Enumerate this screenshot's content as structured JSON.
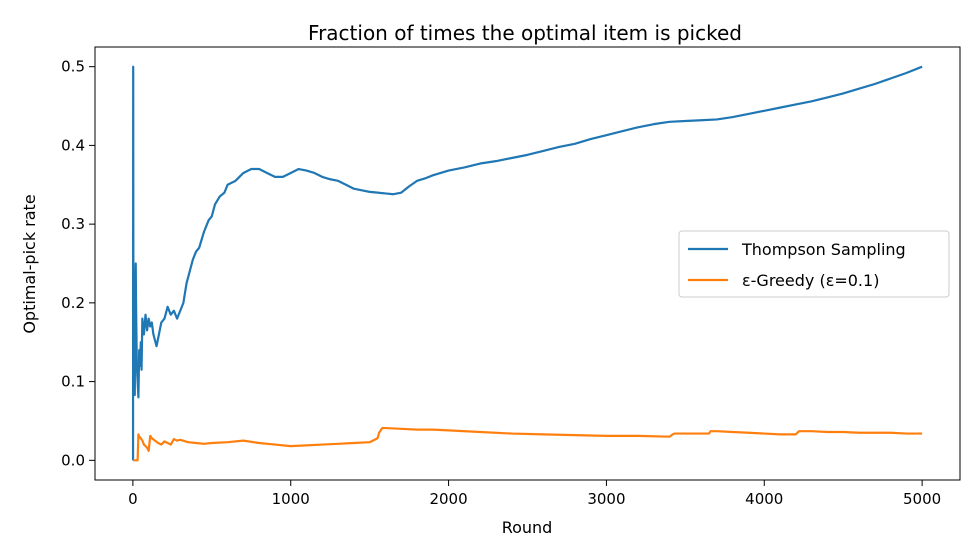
{
  "chart_data": {
    "type": "line",
    "title": "Fraction of times the optimal item is picked",
    "xlabel": "Round",
    "ylabel": "Optimal-pick rate",
    "xlim": [
      -240,
      5240
    ],
    "ylim": [
      -0.025,
      0.525
    ],
    "xticks": [
      0,
      1000,
      2000,
      3000,
      4000,
      5000
    ],
    "yticks": [
      0.0,
      0.1,
      0.2,
      0.3,
      0.4,
      0.5
    ],
    "xtick_labels": [
      "0",
      "1000",
      "2000",
      "3000",
      "4000",
      "5000"
    ],
    "ytick_labels": [
      "0.0",
      "0.1",
      "0.2",
      "0.3",
      "0.4",
      "0.5"
    ],
    "grid": false,
    "legend_position": "center-right",
    "series": [
      {
        "name": "Thompson Sampling",
        "color": "#1f77b4",
        "x": [
          1,
          2,
          3,
          5,
          8,
          10,
          12,
          15,
          18,
          20,
          25,
          30,
          35,
          40,
          45,
          50,
          55,
          60,
          70,
          80,
          90,
          100,
          110,
          120,
          130,
          150,
          170,
          180,
          200,
          220,
          240,
          260,
          280,
          300,
          320,
          340,
          360,
          380,
          400,
          420,
          450,
          480,
          500,
          520,
          550,
          580,
          600,
          650,
          700,
          750,
          800,
          850,
          900,
          950,
          1000,
          1050,
          1100,
          1150,
          1200,
          1250,
          1300,
          1350,
          1400,
          1450,
          1500,
          1550,
          1600,
          1650,
          1700,
          1750,
          1800,
          1850,
          1900,
          1950,
          2000,
          2100,
          2200,
          2300,
          2400,
          2500,
          2600,
          2700,
          2800,
          2900,
          3000,
          3100,
          3200,
          3300,
          3400,
          3500,
          3600,
          3700,
          3800,
          3900,
          4000,
          4100,
          4200,
          4300,
          4400,
          4500,
          4600,
          4700,
          4800,
          4900,
          5000
        ],
        "values": [
          0.0,
          0.5,
          0.25,
          0.2,
          0.125,
          0.1,
          0.083,
          0.2,
          0.25,
          0.2,
          0.12,
          0.1,
          0.08,
          0.14,
          0.12,
          0.15,
          0.115,
          0.18,
          0.16,
          0.185,
          0.165,
          0.18,
          0.17,
          0.175,
          0.16,
          0.145,
          0.165,
          0.175,
          0.18,
          0.195,
          0.185,
          0.19,
          0.18,
          0.19,
          0.2,
          0.225,
          0.24,
          0.255,
          0.265,
          0.27,
          0.29,
          0.305,
          0.31,
          0.325,
          0.335,
          0.34,
          0.35,
          0.355,
          0.365,
          0.37,
          0.37,
          0.365,
          0.36,
          0.36,
          0.365,
          0.37,
          0.368,
          0.365,
          0.36,
          0.357,
          0.355,
          0.35,
          0.345,
          0.343,
          0.341,
          0.34,
          0.339,
          0.338,
          0.34,
          0.348,
          0.355,
          0.358,
          0.362,
          0.365,
          0.368,
          0.372,
          0.377,
          0.38,
          0.384,
          0.388,
          0.393,
          0.398,
          0.402,
          0.408,
          0.413,
          0.418,
          0.423,
          0.427,
          0.43,
          0.431,
          0.432,
          0.433,
          0.436,
          0.44,
          0.444,
          0.448,
          0.452,
          0.456,
          0.461,
          0.466,
          0.472,
          0.478,
          0.485,
          0.492,
          0.5
        ]
      },
      {
        "name": "ε-Greedy (ε=0.1)",
        "color": "#ff7f0e",
        "x": [
          1,
          5,
          10,
          15,
          20,
          25,
          30,
          35,
          40,
          50,
          60,
          70,
          80,
          90,
          100,
          110,
          120,
          140,
          160,
          180,
          200,
          220,
          240,
          260,
          280,
          300,
          350,
          400,
          450,
          500,
          600,
          700,
          800,
          900,
          1000,
          1100,
          1200,
          1300,
          1400,
          1500,
          1550,
          1560,
          1580,
          1600,
          1700,
          1800,
          1900,
          2000,
          2200,
          2400,
          2600,
          2800,
          3000,
          3200,
          3400,
          3420,
          3430,
          3500,
          3600,
          3650,
          3660,
          3700,
          3800,
          3900,
          4000,
          4100,
          4200,
          4210,
          4220,
          4300,
          4400,
          4500,
          4600,
          4700,
          4800,
          4900,
          5000
        ],
        "values": [
          0.0,
          0.0,
          0.0,
          0.0,
          0.0,
          0.0,
          0.0,
          0.033,
          0.03,
          0.028,
          0.025,
          0.02,
          0.018,
          0.016,
          0.012,
          0.031,
          0.028,
          0.025,
          0.022,
          0.02,
          0.024,
          0.022,
          0.02,
          0.027,
          0.025,
          0.026,
          0.023,
          0.022,
          0.021,
          0.022,
          0.023,
          0.025,
          0.022,
          0.02,
          0.018,
          0.019,
          0.02,
          0.021,
          0.022,
          0.023,
          0.028,
          0.035,
          0.041,
          0.041,
          0.04,
          0.039,
          0.039,
          0.038,
          0.036,
          0.034,
          0.033,
          0.032,
          0.031,
          0.031,
          0.03,
          0.033,
          0.034,
          0.034,
          0.034,
          0.034,
          0.037,
          0.037,
          0.036,
          0.035,
          0.034,
          0.033,
          0.033,
          0.035,
          0.037,
          0.037,
          0.036,
          0.036,
          0.035,
          0.035,
          0.035,
          0.034,
          0.034
        ]
      }
    ]
  }
}
